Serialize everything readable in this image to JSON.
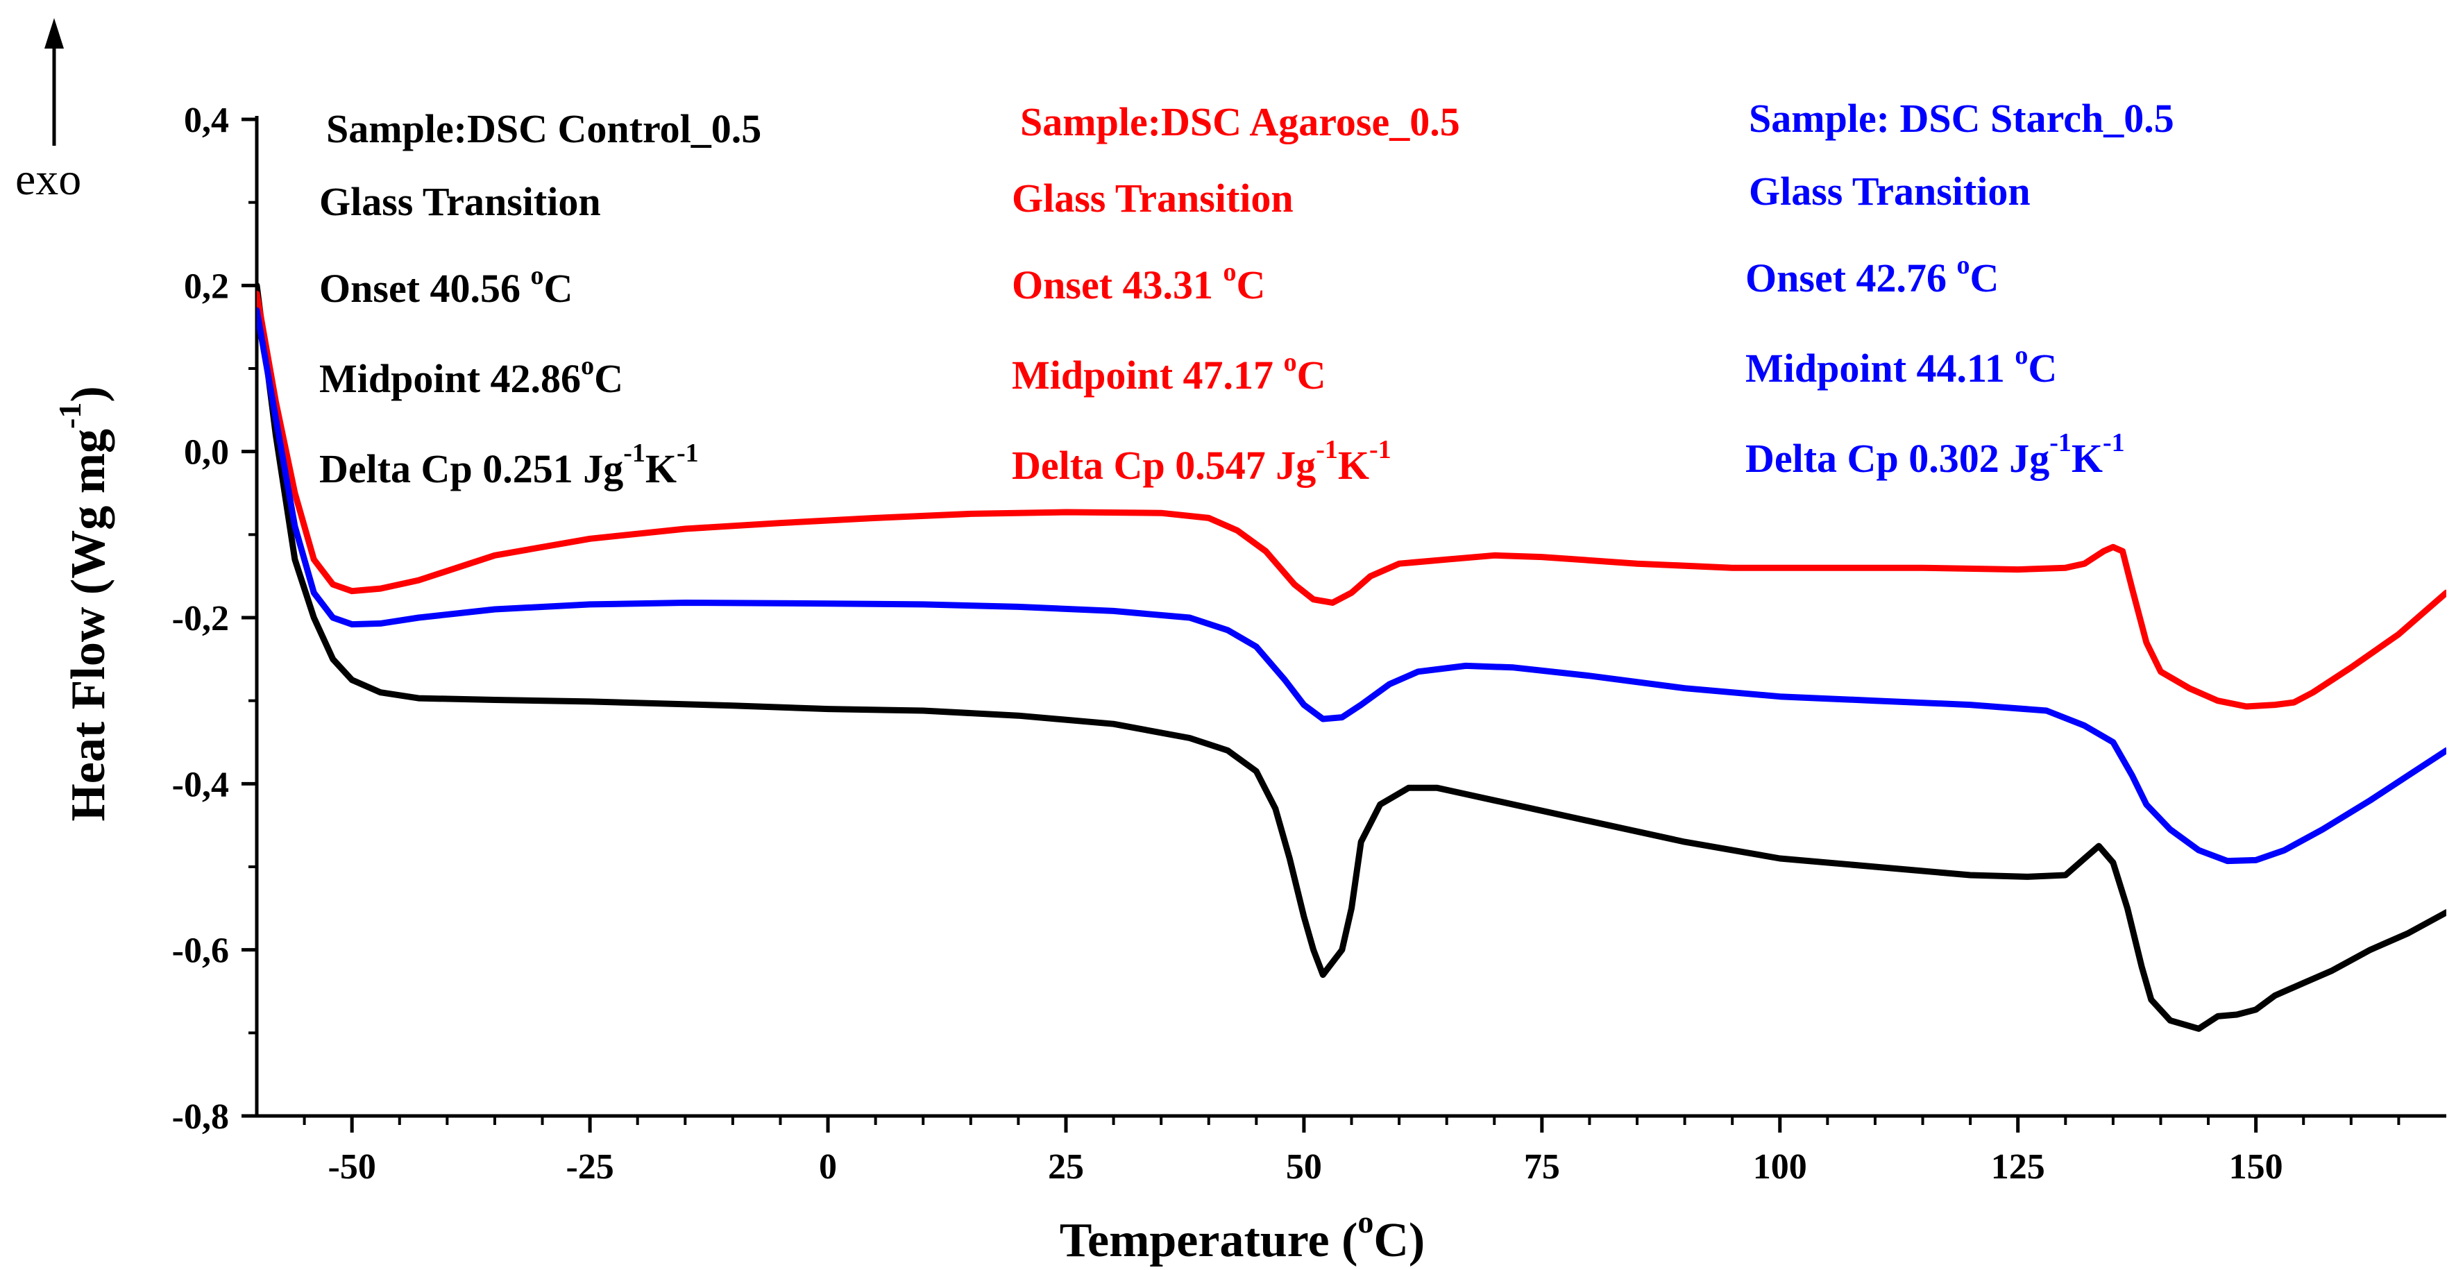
{
  "chart_data": {
    "type": "line",
    "xlabel": "Temperature (",
    "xlabel_sup": "o",
    "xlabel_end": "C)",
    "ylabel": "Heat Flow (Wg",
    "ylabel_mid": " mg",
    "ylabel_sup": "-1",
    "ylabel_end": ")",
    "exo_label": "exo",
    "xlim": [
      -60,
      170
    ],
    "ylim": [
      -0.8,
      0.4
    ],
    "x_ticks": [
      -50,
      -25,
      0,
      25,
      50,
      75,
      100,
      125,
      150
    ],
    "x_tick_labels": [
      "-50",
      "-25",
      "0",
      "25",
      "50",
      "75",
      "100",
      "125",
      "150"
    ],
    "y_ticks": [
      -0.8,
      -0.6,
      -0.4,
      -0.2,
      0.0,
      0.2,
      0.4
    ],
    "y_tick_labels": [
      "-0,8",
      "-0,6",
      "-0,4",
      "-0,2",
      "0,0",
      "0,2",
      "0,4"
    ],
    "grid": false,
    "series": [
      {
        "key": "control",
        "color": "#000000",
        "points": [
          [
            -60,
            0.2
          ],
          [
            -58,
            0.02
          ],
          [
            -56,
            -0.13
          ],
          [
            -54,
            -0.2
          ],
          [
            -52,
            -0.25
          ],
          [
            -50,
            -0.275
          ],
          [
            -47,
            -0.29
          ],
          [
            -43,
            -0.297
          ],
          [
            -35,
            -0.299
          ],
          [
            -25,
            -0.301
          ],
          [
            -10,
            -0.306
          ],
          [
            0,
            -0.31
          ],
          [
            10,
            -0.312
          ],
          [
            20,
            -0.318
          ],
          [
            30,
            -0.328
          ],
          [
            38,
            -0.345
          ],
          [
            42,
            -0.36
          ],
          [
            45,
            -0.385
          ],
          [
            47,
            -0.43
          ],
          [
            48.5,
            -0.49
          ],
          [
            50,
            -0.56
          ],
          [
            51,
            -0.6
          ],
          [
            52,
            -0.63
          ],
          [
            54,
            -0.6
          ],
          [
            55,
            -0.55
          ],
          [
            56,
            -0.47
          ],
          [
            58,
            -0.425
          ],
          [
            61,
            -0.405
          ],
          [
            64,
            -0.405
          ],
          [
            70,
            -0.42
          ],
          [
            80,
            -0.445
          ],
          [
            90,
            -0.47
          ],
          [
            100,
            -0.49
          ],
          [
            110,
            -0.5
          ],
          [
            120,
            -0.51
          ],
          [
            126,
            -0.512
          ],
          [
            130,
            -0.51
          ],
          [
            132,
            -0.49
          ],
          [
            133.5,
            -0.475
          ],
          [
            135,
            -0.495
          ],
          [
            136.5,
            -0.55
          ],
          [
            138,
            -0.62
          ],
          [
            139,
            -0.66
          ],
          [
            141,
            -0.685
          ],
          [
            144,
            -0.695
          ],
          [
            146,
            -0.68
          ],
          [
            148,
            -0.678
          ],
          [
            150,
            -0.672
          ],
          [
            152,
            -0.655
          ],
          [
            155,
            -0.64
          ],
          [
            158,
            -0.625
          ],
          [
            162,
            -0.6
          ],
          [
            166,
            -0.58
          ],
          [
            170,
            -0.555
          ]
        ]
      },
      {
        "key": "agarose",
        "color": "#ff0000",
        "points": [
          [
            -60,
            0.19
          ],
          [
            -58,
            0.06
          ],
          [
            -56,
            -0.05
          ],
          [
            -54,
            -0.13
          ],
          [
            -52,
            -0.16
          ],
          [
            -50,
            -0.168
          ],
          [
            -47,
            -0.165
          ],
          [
            -43,
            -0.155
          ],
          [
            -35,
            -0.125
          ],
          [
            -25,
            -0.105
          ],
          [
            -15,
            -0.093
          ],
          [
            -5,
            -0.086
          ],
          [
            5,
            -0.08
          ],
          [
            15,
            -0.075
          ],
          [
            25,
            -0.073
          ],
          [
            35,
            -0.074
          ],
          [
            40,
            -0.08
          ],
          [
            43,
            -0.095
          ],
          [
            46,
            -0.12
          ],
          [
            49,
            -0.16
          ],
          [
            51,
            -0.178
          ],
          [
            53,
            -0.182
          ],
          [
            55,
            -0.17
          ],
          [
            57,
            -0.15
          ],
          [
            60,
            -0.135
          ],
          [
            65,
            -0.13
          ],
          [
            70,
            -0.125
          ],
          [
            75,
            -0.127
          ],
          [
            85,
            -0.135
          ],
          [
            95,
            -0.14
          ],
          [
            105,
            -0.14
          ],
          [
            115,
            -0.14
          ],
          [
            125,
            -0.142
          ],
          [
            130,
            -0.14
          ],
          [
            132,
            -0.135
          ],
          [
            134,
            -0.12
          ],
          [
            135,
            -0.115
          ],
          [
            136,
            -0.12
          ],
          [
            137,
            -0.165
          ],
          [
            138.5,
            -0.23
          ],
          [
            140,
            -0.265
          ],
          [
            143,
            -0.285
          ],
          [
            146,
            -0.3
          ],
          [
            149,
            -0.307
          ],
          [
            152,
            -0.305
          ],
          [
            154,
            -0.302
          ],
          [
            156,
            -0.29
          ],
          [
            160,
            -0.26
          ],
          [
            165,
            -0.22
          ],
          [
            170,
            -0.17
          ]
        ]
      },
      {
        "key": "starch",
        "color": "#0000ff",
        "points": [
          [
            -60,
            0.17
          ],
          [
            -58,
            0.04
          ],
          [
            -56,
            -0.09
          ],
          [
            -54,
            -0.17
          ],
          [
            -52,
            -0.2
          ],
          [
            -50,
            -0.208
          ],
          [
            -47,
            -0.207
          ],
          [
            -43,
            -0.2
          ],
          [
            -35,
            -0.19
          ],
          [
            -25,
            -0.184
          ],
          [
            -15,
            -0.182
          ],
          [
            0,
            -0.183
          ],
          [
            10,
            -0.184
          ],
          [
            20,
            -0.187
          ],
          [
            30,
            -0.192
          ],
          [
            38,
            -0.2
          ],
          [
            42,
            -0.215
          ],
          [
            45,
            -0.235
          ],
          [
            48,
            -0.275
          ],
          [
            50,
            -0.305
          ],
          [
            52,
            -0.322
          ],
          [
            54,
            -0.32
          ],
          [
            56,
            -0.305
          ],
          [
            59,
            -0.28
          ],
          [
            62,
            -0.265
          ],
          [
            67,
            -0.258
          ],
          [
            72,
            -0.26
          ],
          [
            80,
            -0.27
          ],
          [
            90,
            -0.285
          ],
          [
            100,
            -0.295
          ],
          [
            110,
            -0.3
          ],
          [
            120,
            -0.305
          ],
          [
            128,
            -0.312
          ],
          [
            132,
            -0.33
          ],
          [
            135,
            -0.35
          ],
          [
            137,
            -0.39
          ],
          [
            138.5,
            -0.425
          ],
          [
            141,
            -0.455
          ],
          [
            144,
            -0.48
          ],
          [
            147,
            -0.493
          ],
          [
            150,
            -0.492
          ],
          [
            153,
            -0.48
          ],
          [
            157,
            -0.455
          ],
          [
            162,
            -0.42
          ],
          [
            166,
            -0.39
          ],
          [
            170,
            -0.36
          ]
        ]
      }
    ],
    "annotations": {
      "control": {
        "color": "#000000",
        "sample": "Sample:DSC Control_0.5",
        "transition": "Glass Transition",
        "onset_pre": "Onset 40.56 ",
        "onset_sup": "o",
        "onset_post": "C",
        "midpoint_pre": "Midpoint 42.86",
        "midpoint_sup": "o",
        "midpoint_post": "C",
        "delta_pre": "Delta Cp 0.251 Jg",
        "delta_sup1": "-1",
        "delta_mid": "K",
        "delta_sup2": "-1"
      },
      "agarose": {
        "color": "#ff0000",
        "sample": "Sample:DSC Agarose_0.5",
        "transition": "Glass Transition",
        "onset_pre": "Onset 43.31 ",
        "onset_sup": "o",
        "onset_post": "C",
        "midpoint_pre": "Midpoint 47.17 ",
        "midpoint_sup": "o",
        "midpoint_post": "C",
        "delta_pre": "Delta Cp 0.547 Jg",
        "delta_sup1": "-1",
        "delta_mid": "K",
        "delta_sup2": "-1"
      },
      "starch": {
        "color": "#0000ff",
        "sample": "Sample: DSC Starch_0.5",
        "transition": "Glass Transition",
        "onset_pre": "Onset 42.76 ",
        "onset_sup": "o",
        "onset_post": "C",
        "midpoint_pre": "Midpoint 44.11 ",
        "midpoint_sup": "o",
        "midpoint_post": "C",
        "delta_pre": "Delta Cp 0.302 Jg",
        "delta_sup1": "-1",
        "delta_mid": "K",
        "delta_sup2": "-1"
      }
    }
  }
}
